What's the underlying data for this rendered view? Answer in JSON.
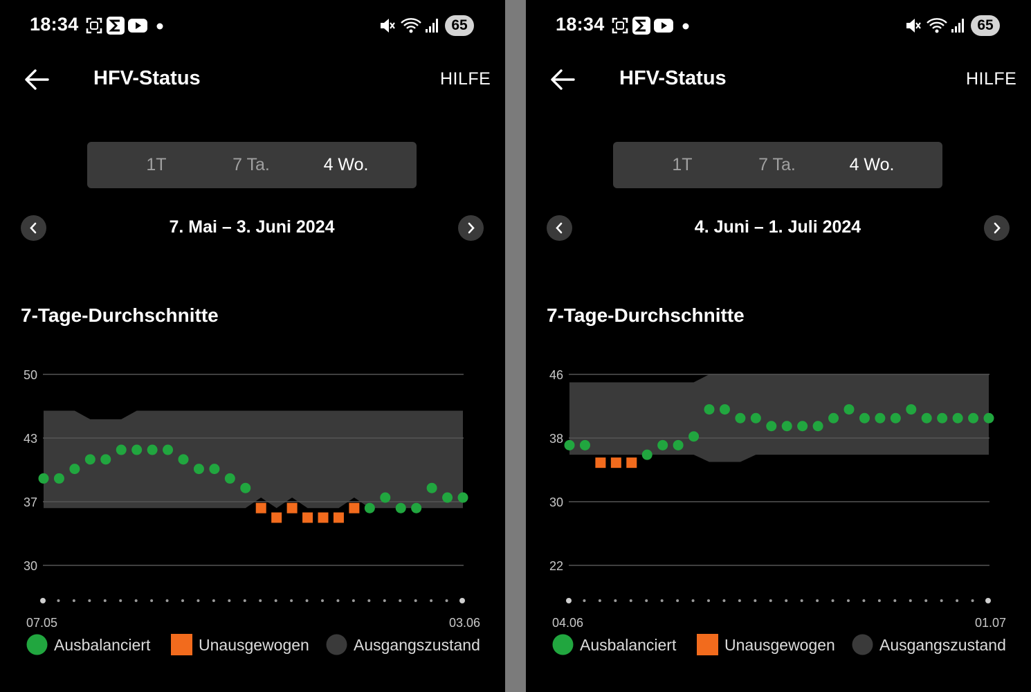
{
  "panels": [
    {
      "status_bar": {
        "time": "18:34",
        "battery": "65"
      },
      "header": {
        "title": "HFV-Status",
        "help": "HILFE"
      },
      "tabs": [
        {
          "label": "1T"
        },
        {
          "label": "7 Ta."
        },
        {
          "label": "4 Wo.",
          "selected": true
        }
      ],
      "date_range": "7. Mai – 3. Juni 2024",
      "section_title": "7-Tage-Durchschnitte",
      "chart_data": {
        "type": "scatter",
        "y_ticks": [
          "50",
          "43",
          "37",
          "30"
        ],
        "x_labels": [
          "07.05",
          "03.06"
        ],
        "points": [
          {
            "v": 39.1,
            "s": "balanced"
          },
          {
            "v": 39.1,
            "s": "balanced"
          },
          {
            "v": 40.1,
            "s": "balanced"
          },
          {
            "v": 41.1,
            "s": "balanced"
          },
          {
            "v": 41.1,
            "s": "balanced"
          },
          {
            "v": 42.1,
            "s": "balanced"
          },
          {
            "v": 42.1,
            "s": "balanced"
          },
          {
            "v": 42.1,
            "s": "balanced"
          },
          {
            "v": 42.1,
            "s": "balanced"
          },
          {
            "v": 41.1,
            "s": "balanced"
          },
          {
            "v": 40.1,
            "s": "balanced"
          },
          {
            "v": 40.1,
            "s": "balanced"
          },
          {
            "v": 39.1,
            "s": "balanced"
          },
          {
            "v": 38.1,
            "s": "balanced"
          },
          {
            "v": 36.0,
            "s": "unbalanced"
          },
          {
            "v": 35.0,
            "s": "unbalanced"
          },
          {
            "v": 36.0,
            "s": "unbalanced"
          },
          {
            "v": 35.0,
            "s": "unbalanced"
          },
          {
            "v": 35.0,
            "s": "unbalanced"
          },
          {
            "v": 35.0,
            "s": "unbalanced"
          },
          {
            "v": 36.0,
            "s": "unbalanced"
          },
          {
            "v": 36.0,
            "s": "balanced"
          },
          {
            "v": 37.1,
            "s": "balanced"
          },
          {
            "v": 36.0,
            "s": "balanced"
          },
          {
            "v": 36.0,
            "s": "balanced"
          },
          {
            "v": 38.1,
            "s": "balanced"
          },
          {
            "v": 37.1,
            "s": "balanced"
          },
          {
            "v": 37.1,
            "s": "balanced"
          }
        ],
        "baseline": {
          "lower": [
            36.0,
            36.0,
            36.0,
            36.0,
            36.0,
            36.0,
            36.0,
            36.0,
            36.0,
            36.0,
            36.0,
            36.0,
            36.0,
            36.0,
            37.1,
            36.0,
            37.1,
            36.0,
            36.0,
            36.0,
            37.1,
            36.0,
            36.0,
            36.0,
            36.0,
            36.0,
            36.0,
            36.0
          ],
          "upper": [
            46.2,
            46.2,
            46.2,
            45.3,
            45.3,
            45.3,
            46.2,
            46.2,
            46.2,
            46.2,
            46.2,
            46.2,
            46.2,
            46.2,
            46.2,
            46.2,
            46.2,
            46.2,
            46.2,
            46.2,
            46.2,
            46.2,
            46.2,
            46.2,
            46.2,
            46.2,
            46.2,
            46.2
          ]
        }
      }
    },
    {
      "status_bar": {
        "time": "18:34",
        "battery": "65"
      },
      "header": {
        "title": "HFV-Status",
        "help": "HILFE"
      },
      "tabs": [
        {
          "label": "1T"
        },
        {
          "label": "7 Ta."
        },
        {
          "label": "4 Wo.",
          "selected": true
        }
      ],
      "date_range": "4. Juni – 1. Juli 2024",
      "section_title": "7-Tage-Durchschnitte",
      "chart_data": {
        "type": "scatter",
        "y_ticks": [
          "46",
          "38",
          "30",
          "22"
        ],
        "x_labels": [
          "04.06",
          "01.07"
        ],
        "points": [
          {
            "v": 37.1,
            "s": "balanced"
          },
          {
            "v": 37.1,
            "s": "balanced"
          },
          {
            "v": 34.9,
            "s": "unbalanced"
          },
          {
            "v": 34.9,
            "s": "unbalanced"
          },
          {
            "v": 34.9,
            "s": "unbalanced"
          },
          {
            "v": 35.9,
            "s": "balanced"
          },
          {
            "v": 37.1,
            "s": "balanced"
          },
          {
            "v": 37.1,
            "s": "balanced"
          },
          {
            "v": 38.2,
            "s": "balanced"
          },
          {
            "v": 41.6,
            "s": "balanced"
          },
          {
            "v": 41.6,
            "s": "balanced"
          },
          {
            "v": 40.5,
            "s": "balanced"
          },
          {
            "v": 40.5,
            "s": "balanced"
          },
          {
            "v": 39.5,
            "s": "balanced"
          },
          {
            "v": 39.5,
            "s": "balanced"
          },
          {
            "v": 39.5,
            "s": "balanced"
          },
          {
            "v": 39.5,
            "s": "balanced"
          },
          {
            "v": 40.5,
            "s": "balanced"
          },
          {
            "v": 41.6,
            "s": "balanced"
          },
          {
            "v": 40.5,
            "s": "balanced"
          },
          {
            "v": 40.5,
            "s": "balanced"
          },
          {
            "v": 40.5,
            "s": "balanced"
          },
          {
            "v": 41.6,
            "s": "balanced"
          },
          {
            "v": 40.5,
            "s": "balanced"
          },
          {
            "v": 40.5,
            "s": "balanced"
          },
          {
            "v": 40.5,
            "s": "balanced"
          },
          {
            "v": 40.5,
            "s": "balanced"
          },
          {
            "v": 40.5,
            "s": "balanced"
          }
        ],
        "baseline": {
          "lower": [
            35.9,
            35.9,
            35.9,
            35.9,
            35.9,
            35.9,
            35.9,
            35.9,
            35.9,
            35.0,
            35.0,
            35.0,
            35.9,
            35.9,
            35.9,
            35.9,
            35.9,
            35.9,
            35.9,
            35.9,
            35.9,
            35.9,
            35.9,
            35.9,
            35.9,
            35.9,
            35.9,
            35.9
          ],
          "upper": [
            45.0,
            45.0,
            45.0,
            45.0,
            45.0,
            45.0,
            45.0,
            45.0,
            45.0,
            46.0,
            46.0,
            46.0,
            46.0,
            46.0,
            46.0,
            46.0,
            46.0,
            46.0,
            46.0,
            46.0,
            46.0,
            46.0,
            46.0,
            46.0,
            46.0,
            46.0,
            46.0,
            46.0
          ]
        }
      }
    }
  ],
  "legend": {
    "balanced": "Ausbalanciert",
    "unbalanced": "Unausgewogen",
    "baseline": "Ausgangszustand"
  },
  "colors": {
    "balanced": "#21a63f",
    "unbalanced": "#f26b1d",
    "baseline": "#3a3a3a",
    "grid": "#555555",
    "axis_text": "#c8c8c8"
  },
  "icons": [
    "camera-capture-icon",
    "sigma-app-icon",
    "youtube-icon",
    "dot-icon",
    "mute-icon",
    "wifi-icon",
    "signal-icon",
    "back-arrow-icon",
    "chevron-left-icon",
    "chevron-right-icon"
  ]
}
